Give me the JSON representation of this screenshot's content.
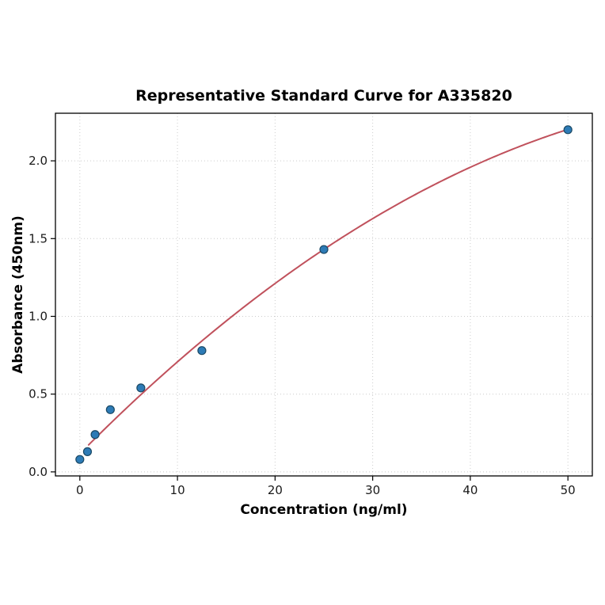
{
  "chart_data": {
    "type": "scatter",
    "title": "Representative Standard Curve for A335820",
    "xlabel": "Concentration (ng/ml)",
    "ylabel": "Absorbance (450nm)",
    "points": {
      "x": [
        0,
        0.781,
        1.563,
        3.125,
        6.25,
        12.5,
        25,
        50
      ],
      "y": [
        0.08,
        0.13,
        0.24,
        0.4,
        0.54,
        0.78,
        1.43,
        2.2
      ]
    },
    "fit_curve": {
      "type": "quadratic",
      "coefficients": [
        0.117,
        0.0634,
        -0.000434
      ],
      "x_start": 0.9,
      "x_end": 50
    },
    "xlim": [
      -2.5,
      52.5
    ],
    "ylim": [
      -0.026,
      2.306
    ],
    "xticks": [
      0,
      10,
      20,
      30,
      40,
      50
    ],
    "xtick_labels": [
      "0",
      "10",
      "20",
      "30",
      "40",
      "50"
    ],
    "yticks": [
      0,
      0.5,
      1,
      1.5,
      2
    ],
    "ytick_labels": [
      "0.0",
      "0.5",
      "1.0",
      "1.5",
      "2.0"
    ],
    "grid": true,
    "legend": null,
    "colors": {
      "marker_fill": "#2d7bb6",
      "marker_edge": "#1b4965",
      "line": "#c0515c",
      "grid": "#cccccc",
      "frame": "#000000"
    }
  }
}
